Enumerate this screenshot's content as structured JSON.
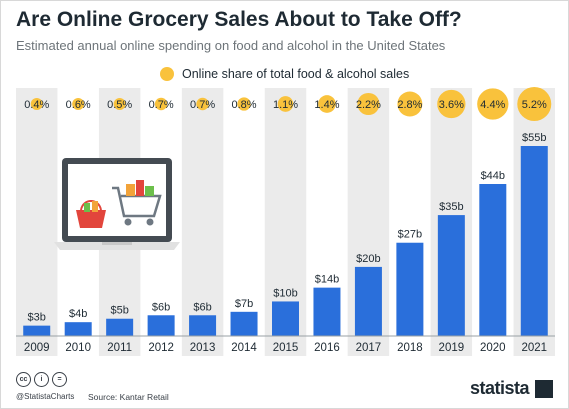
{
  "header": {
    "title": "Are Online Grocery Sales About to Take Off?",
    "subtitle": "Estimated annual online spending on food and alcohol in the United States"
  },
  "legend": {
    "label": "Online share of total food & alcohol sales",
    "color": "#f9c23c"
  },
  "colors": {
    "bar": "#2a6fdb",
    "band": "#ebebeb",
    "bubble": "#f9c23c",
    "text": "#1e2a33"
  },
  "footer": {
    "handle": "@StatistaCharts",
    "source": "Source: Kantar Retail",
    "brand": "statista",
    "license_icons": [
      "cc-icon",
      "by-icon",
      "equals-icon"
    ]
  },
  "illustration": {
    "icon": "laptop-with-shopping-cart-icon"
  },
  "chart_data": {
    "type": "bar",
    "categories": [
      "2009",
      "2010",
      "2011",
      "2012",
      "2013",
      "2014",
      "2015",
      "2016",
      "2017",
      "2018",
      "2019",
      "2020",
      "2021"
    ],
    "series": [
      {
        "values": [
          3,
          4,
          5,
          6,
          6,
          7,
          10,
          14,
          20,
          27,
          35,
          44,
          55
        ],
        "labels": [
          "$3b",
          "$4b",
          "$5b",
          "$6b",
          "$6b",
          "$7b",
          "$10b",
          "$14b",
          "$20b",
          "$27b",
          "$35b",
          "$44b",
          "$55b"
        ]
      },
      {
        "name": "Online share of total food & alcohol sales",
        "values": [
          0.4,
          0.6,
          0.5,
          0.7,
          0.7,
          0.8,
          1.1,
          1.4,
          2.2,
          2.8,
          3.6,
          4.4,
          5.2
        ],
        "labels": [
          "0.4%",
          "0.6%",
          "0.5%",
          "0.7%",
          "0.7%",
          "0.8%",
          "1.1%",
          "1.4%",
          "2.2%",
          "2.8%",
          "3.6%",
          "4.4%",
          "5.2%"
        ]
      }
    ],
    "legend_position": "top",
    "grid": false
  }
}
